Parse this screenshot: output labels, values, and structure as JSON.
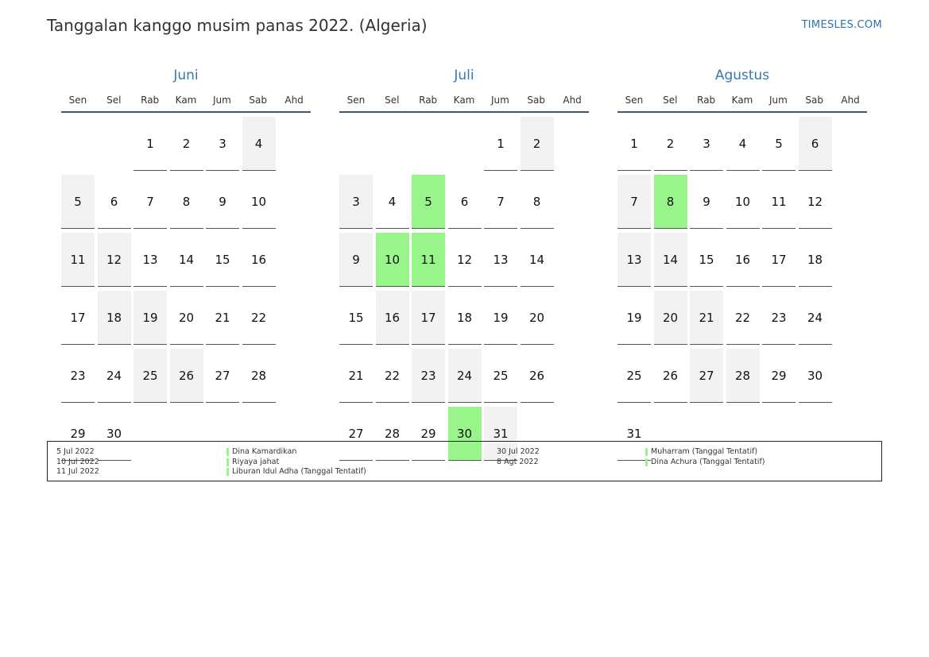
{
  "title": "Tanggalan kanggo musim panas 2022. (Algeria)",
  "brand": "TIMESLES.COM",
  "weekdays": [
    "Sen",
    "Sel",
    "Rab",
    "Kam",
    "Jum",
    "Sab",
    "Ahd"
  ],
  "colors": {
    "holiday": "#98f58a",
    "weekend": "#f2f2f2",
    "month_title": "#3578b5"
  },
  "months": [
    {
      "name": "Juni",
      "offset": 2,
      "days": 30,
      "holidays": []
    },
    {
      "name": "Juli",
      "offset": 4,
      "days": 31,
      "holidays": [
        5,
        10,
        11,
        30
      ]
    },
    {
      "name": "Agustus",
      "offset": 0,
      "days": 31,
      "holidays": [
        8
      ]
    }
  ],
  "legend_left": [
    {
      "date": "5 Jul 2022",
      "name": "Dina Kamardikan"
    },
    {
      "date": "10 Jul 2022",
      "name": "Riyaya jahat"
    },
    {
      "date": "11 Jul 2022",
      "name": "Liburan Idul Adha (Tanggal Tentatif)"
    }
  ],
  "legend_right": [
    {
      "date": "30 Jul 2022",
      "name": "Muharram (Tanggal Tentatif)"
    },
    {
      "date": "8 Agt 2022",
      "name": "Dina Achura (Tanggal Tentatif)"
    }
  ]
}
